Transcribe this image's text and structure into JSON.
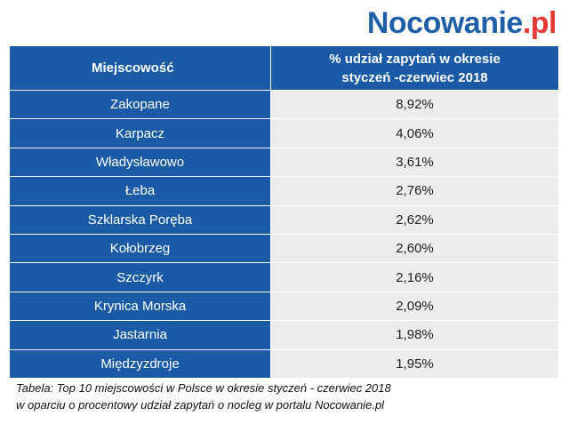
{
  "logo": {
    "main": "Nocowanie",
    "dot": ".",
    "tld": "pl"
  },
  "table": {
    "header_city": "Miejscowość",
    "header_value_line1": "% udział zapytań w okresie",
    "header_value_line2": "styczeń -czerwiec 2018",
    "rows": [
      {
        "city": "Zakopane",
        "value": "8,92%"
      },
      {
        "city": "Karpacz",
        "value": "4,06%"
      },
      {
        "city": "Władysławowo",
        "value": "3,61%"
      },
      {
        "city": "Łeba",
        "value": "2,76%"
      },
      {
        "city": "Szklarska Poręba",
        "value": "2,62%"
      },
      {
        "city": "Kołobrzeg",
        "value": "2,60%"
      },
      {
        "city": "Szczyrk",
        "value": "2,16%"
      },
      {
        "city": "Krynica Morska",
        "value": "2,09%"
      },
      {
        "city": "Jastarnia",
        "value": "1,98%"
      },
      {
        "city": "Międzyzdroje",
        "value": "1,95%"
      }
    ]
  },
  "caption": {
    "line1": "Tabela: Top 10 miejscowości w Polsce w okresie styczeń - czerwiec 2018",
    "line2": "w oparciu o procentowy udział zapytań o nocleg w portalu Nocowanie.pl"
  },
  "colors": {
    "brand_blue": "#1a5aa6",
    "brand_red": "#e53935",
    "value_background": "#ececec"
  }
}
